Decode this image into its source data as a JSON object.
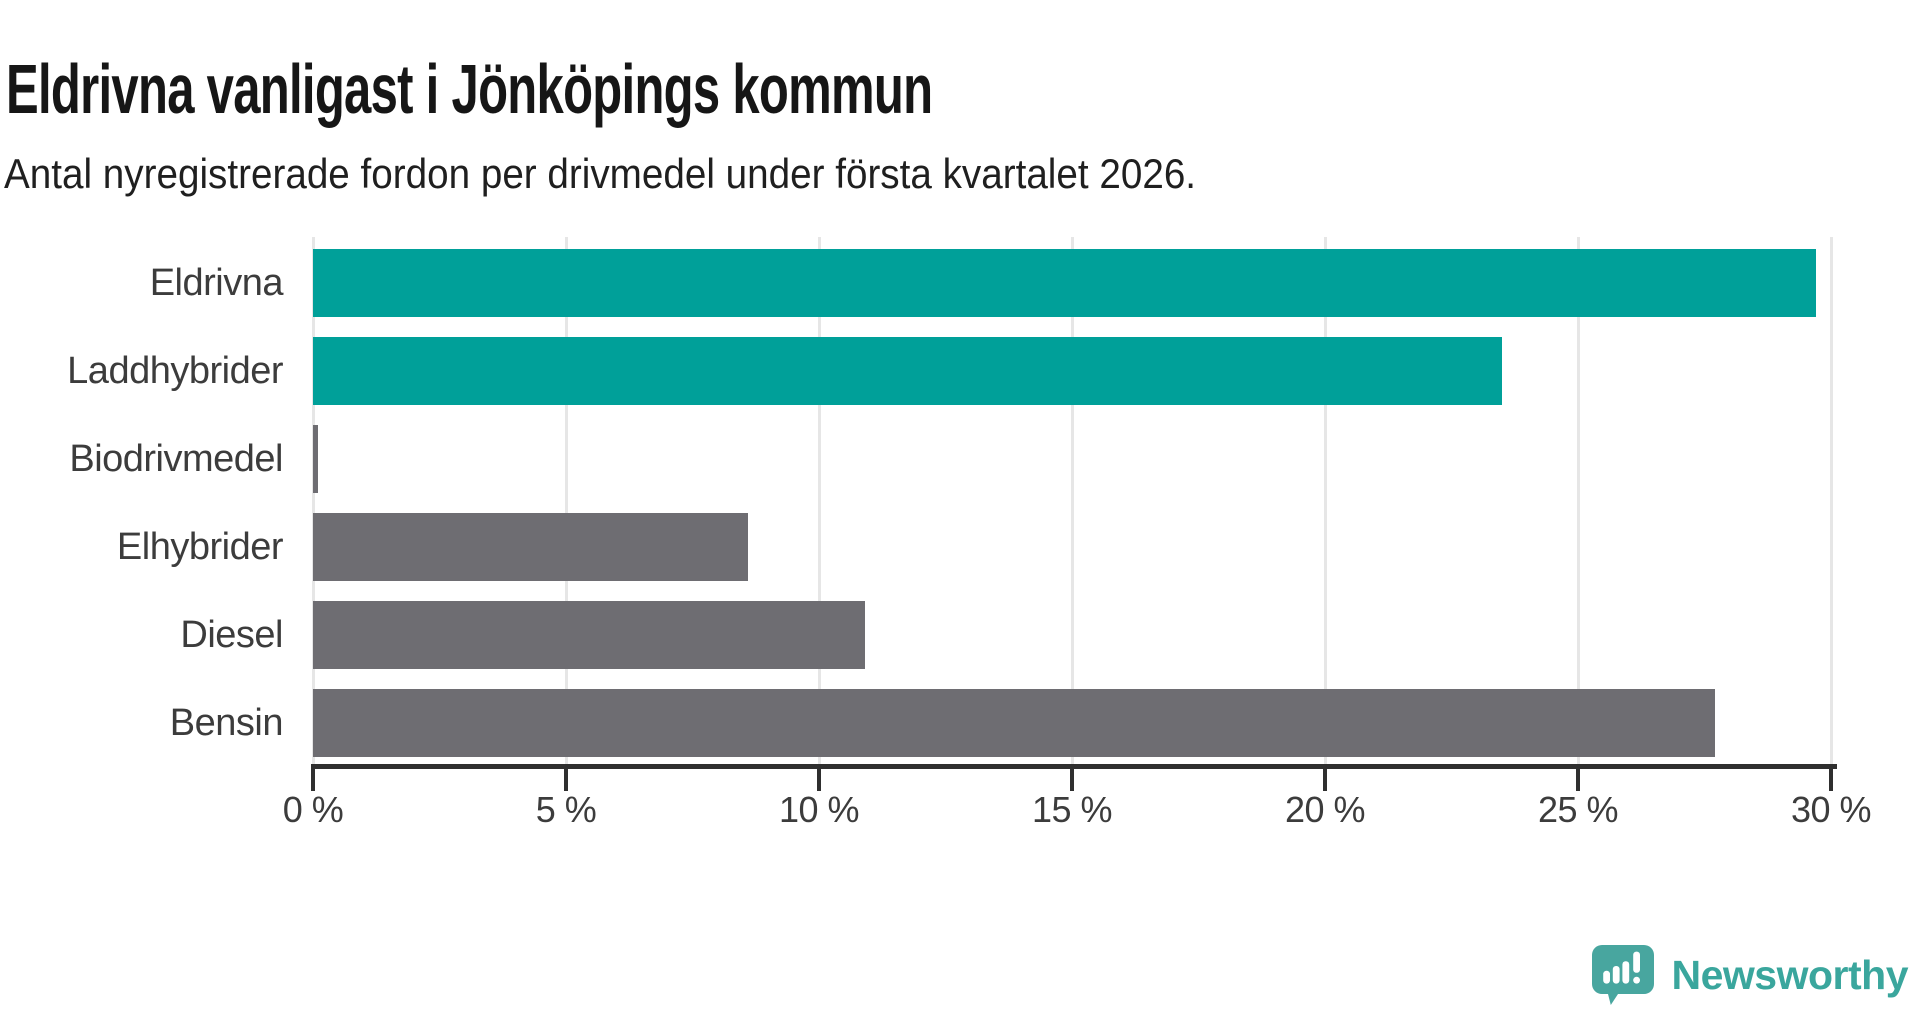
{
  "chart_data": {
    "type": "bar",
    "orientation": "horizontal",
    "title": "Eldrivna vanligast i Jönköpings kommun",
    "subtitle": "Antal nyregistrerade fordon per drivmedel under första kvartalet 2026.",
    "categories": [
      "Eldrivna",
      "Laddhybrider",
      "Biodrivmedel",
      "Elhybrider",
      "Diesel",
      "Bensin"
    ],
    "values": [
      29.7,
      23.5,
      0.1,
      8.6,
      10.9,
      27.7
    ],
    "unit": "%",
    "xlabel": "",
    "ylabel": "",
    "xlim": [
      0,
      30
    ],
    "x_tick_values": [
      0,
      5,
      10,
      15,
      20,
      25,
      30
    ],
    "x_tick_labels": [
      "0 %",
      "5 %",
      "10 %",
      "15 %",
      "20 %",
      "25 %",
      "30 %"
    ],
    "grid": true,
    "legend": false,
    "highlight_color": "#00a099",
    "default_color": "#6e6d72",
    "bar_colors": [
      "#00a099",
      "#00a099",
      "#6e6d72",
      "#6e6d72",
      "#6e6d72",
      "#6e6d72"
    ]
  },
  "footer": {
    "brand": "Newsworthy",
    "brand_color": "#3aa69d",
    "icon_color": "#48a69f"
  }
}
